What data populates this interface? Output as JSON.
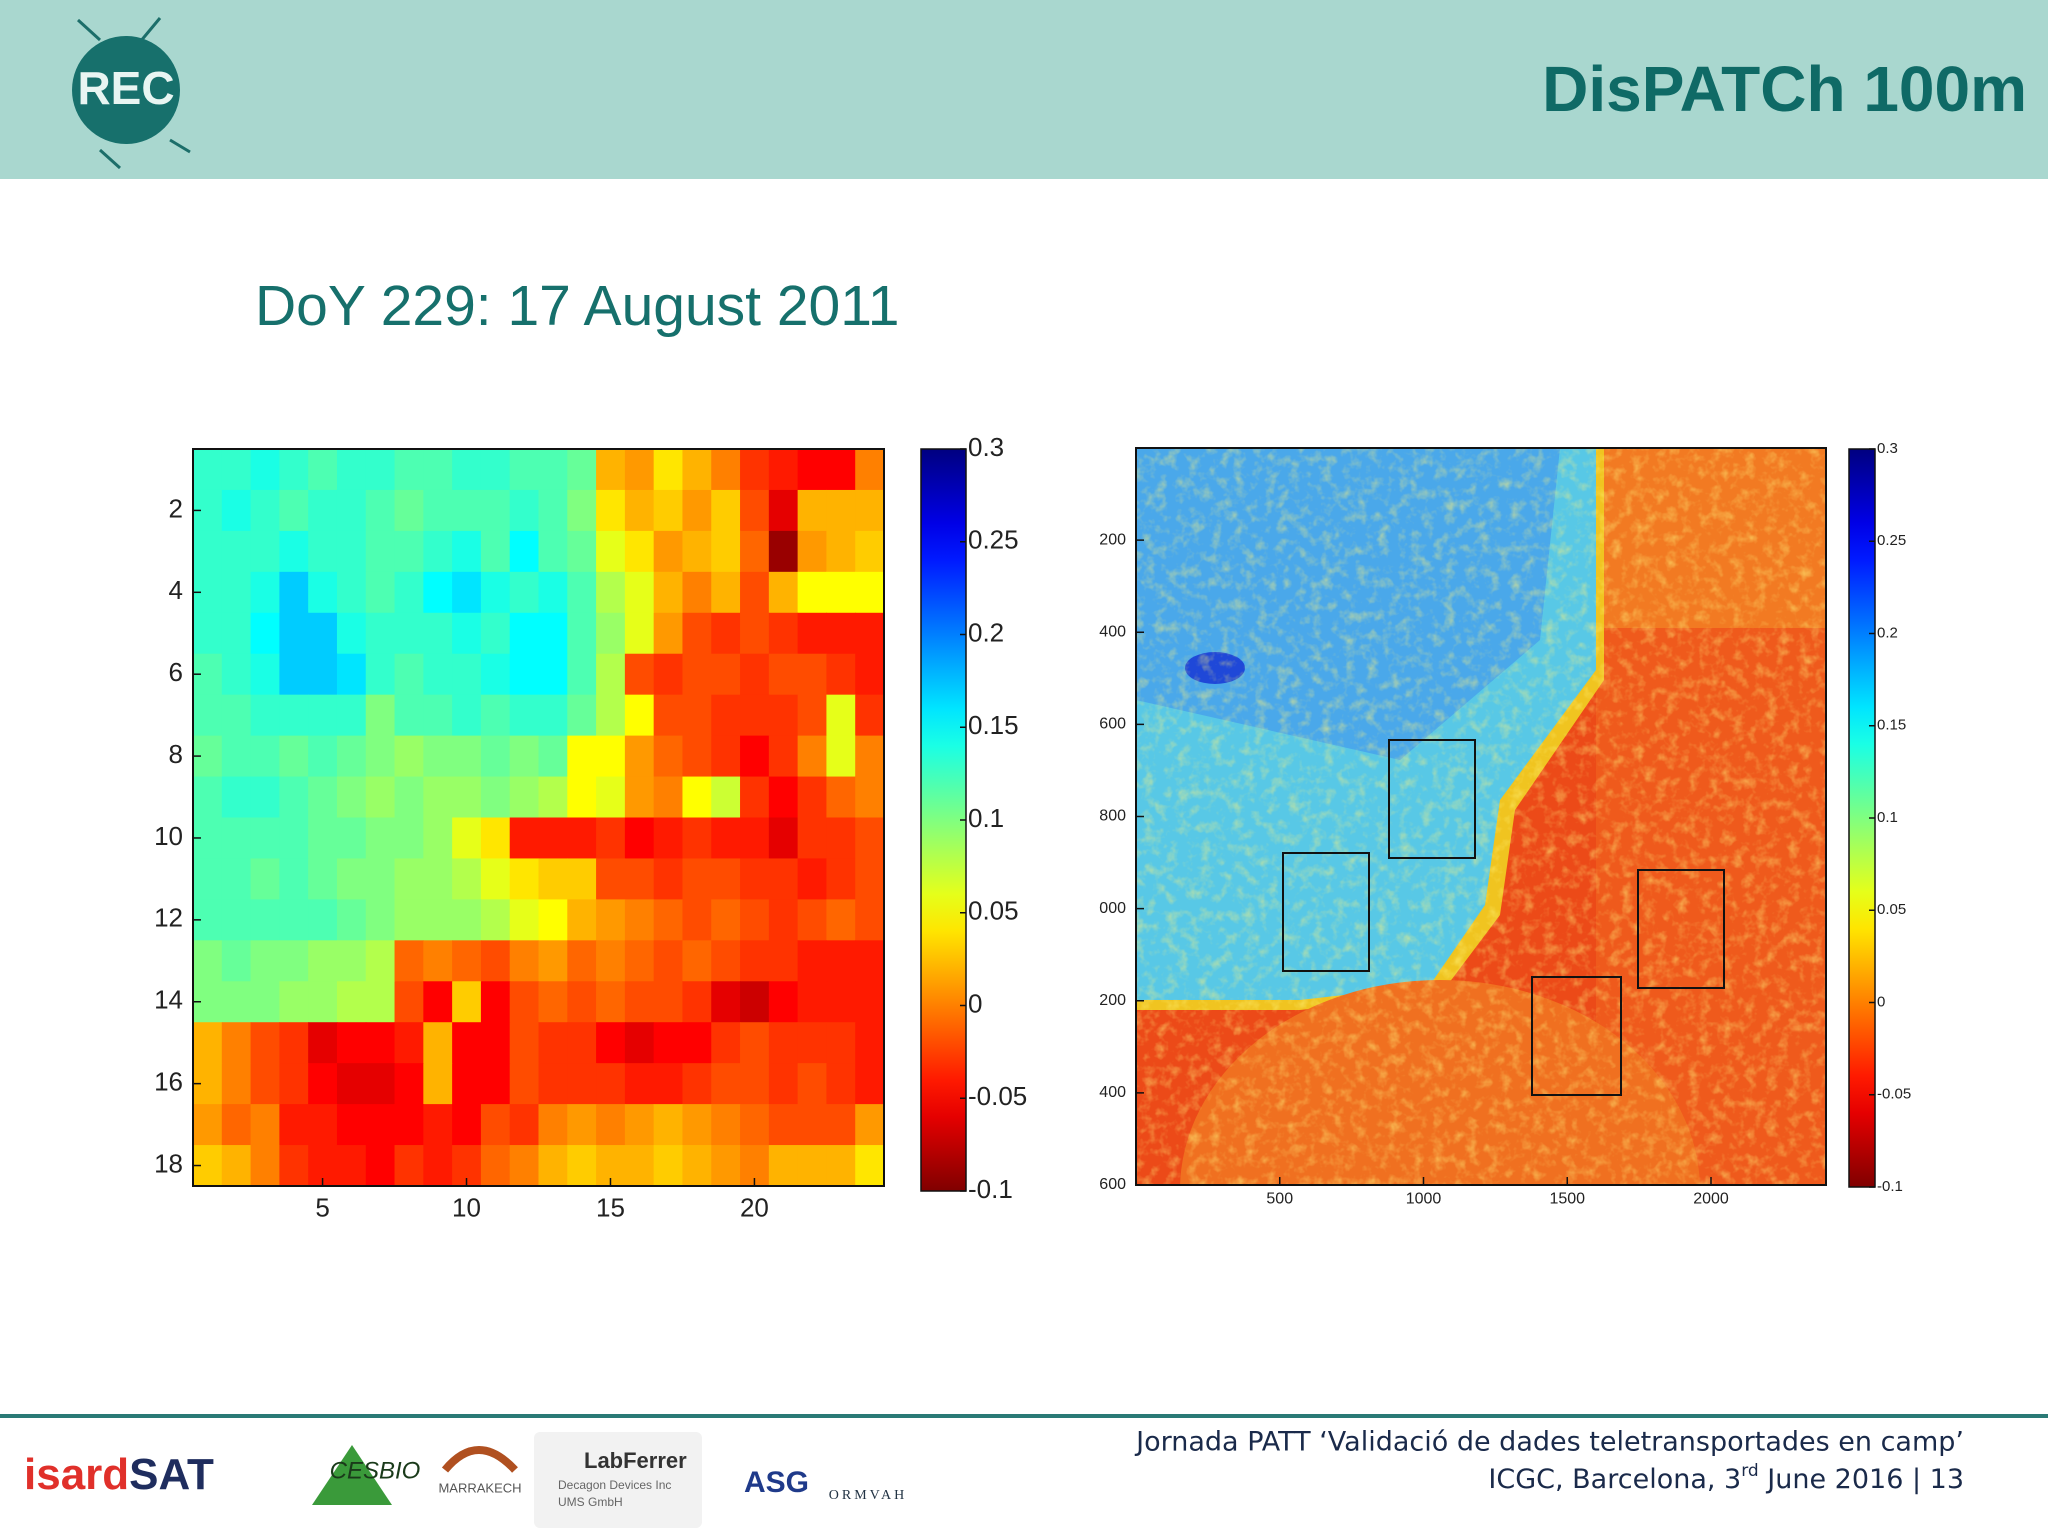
{
  "header": {
    "logo": "REC",
    "title": "DisPATCh 100m"
  },
  "subtitle": "DoY 229: 17 August 2011",
  "chart_data": [
    {
      "type": "heatmap",
      "xlim": [
        0.5,
        24.5
      ],
      "ylim": [
        0.5,
        18.5
      ],
      "y_reversed": true,
      "xticks": [
        5,
        10,
        15,
        20
      ],
      "yticks": [
        2,
        4,
        6,
        8,
        10,
        12,
        14,
        16,
        18
      ],
      "colormap": "jet_reversed",
      "clim": [
        -0.1,
        0.3
      ],
      "cticks": [
        0.3,
        0.25,
        0.2,
        0.15,
        0.1,
        0.05,
        0,
        -0.05,
        -0.1
      ],
      "values": [
        [
          0.13,
          0.13,
          0.14,
          0.13,
          0.12,
          0.13,
          0.13,
          0.12,
          0.12,
          0.13,
          0.13,
          0.12,
          0.12,
          0.11,
          0.02,
          0.01,
          0.04,
          0.02,
          0.0,
          -0.03,
          -0.04,
          -0.05,
          -0.05,
          0.0
        ],
        [
          0.13,
          0.14,
          0.13,
          0.12,
          0.13,
          0.13,
          0.12,
          0.11,
          0.12,
          0.12,
          0.12,
          0.13,
          0.12,
          0.1,
          0.04,
          0.02,
          0.03,
          0.01,
          0.03,
          -0.02,
          -0.06,
          0.02,
          0.02,
          0.02
        ],
        [
          0.13,
          0.13,
          0.13,
          0.14,
          0.13,
          0.13,
          0.12,
          0.12,
          0.13,
          0.14,
          0.12,
          0.15,
          0.12,
          0.11,
          0.06,
          0.04,
          0.01,
          0.02,
          0.03,
          -0.01,
          -0.09,
          0.01,
          0.02,
          0.03
        ],
        [
          0.13,
          0.13,
          0.14,
          0.17,
          0.14,
          0.13,
          0.12,
          0.13,
          0.15,
          0.16,
          0.14,
          0.13,
          0.14,
          0.12,
          0.08,
          0.06,
          0.02,
          0.0,
          0.02,
          -0.02,
          0.02,
          0.05,
          0.05,
          0.05
        ],
        [
          0.13,
          0.13,
          0.15,
          0.17,
          0.17,
          0.14,
          0.13,
          0.13,
          0.13,
          0.14,
          0.13,
          0.15,
          0.15,
          0.12,
          0.09,
          0.06,
          0.01,
          -0.02,
          -0.03,
          -0.02,
          -0.03,
          -0.04,
          -0.04,
          -0.04
        ],
        [
          0.12,
          0.13,
          0.14,
          0.17,
          0.17,
          0.16,
          0.13,
          0.12,
          0.13,
          0.13,
          0.14,
          0.15,
          0.15,
          0.12,
          0.08,
          -0.02,
          -0.03,
          -0.02,
          -0.02,
          -0.03,
          -0.02,
          -0.02,
          -0.03,
          -0.04
        ],
        [
          0.12,
          0.12,
          0.13,
          0.13,
          0.13,
          0.13,
          0.1,
          0.12,
          0.12,
          0.13,
          0.12,
          0.13,
          0.13,
          0.11,
          0.08,
          0.05,
          -0.02,
          -0.02,
          -0.03,
          -0.03,
          -0.03,
          -0.02,
          0.06,
          -0.03
        ],
        [
          0.11,
          0.12,
          0.12,
          0.11,
          0.12,
          0.11,
          0.1,
          0.09,
          0.1,
          0.1,
          0.11,
          0.1,
          0.11,
          0.05,
          0.05,
          0.01,
          -0.01,
          -0.02,
          -0.03,
          -0.05,
          -0.03,
          0.0,
          0.06,
          0.0
        ],
        [
          0.12,
          0.13,
          0.13,
          0.12,
          0.11,
          0.1,
          0.09,
          0.1,
          0.09,
          0.09,
          0.1,
          0.09,
          0.08,
          0.05,
          0.06,
          0.01,
          0.0,
          0.05,
          0.07,
          -0.03,
          -0.05,
          -0.03,
          -0.01,
          0.0
        ],
        [
          0.12,
          0.12,
          0.12,
          0.12,
          0.11,
          0.11,
          0.1,
          0.1,
          0.09,
          0.06,
          0.04,
          -0.04,
          -0.04,
          -0.04,
          -0.03,
          -0.05,
          -0.04,
          -0.03,
          -0.04,
          -0.04,
          -0.06,
          -0.03,
          -0.03,
          -0.02
        ],
        [
          0.12,
          0.12,
          0.11,
          0.12,
          0.11,
          0.1,
          0.1,
          0.09,
          0.09,
          0.08,
          0.06,
          0.04,
          0.03,
          0.03,
          -0.02,
          -0.02,
          -0.03,
          -0.02,
          -0.02,
          -0.03,
          -0.03,
          -0.04,
          -0.03,
          -0.02
        ],
        [
          0.12,
          0.12,
          0.12,
          0.12,
          0.12,
          0.11,
          0.1,
          0.09,
          0.09,
          0.09,
          0.08,
          0.06,
          0.05,
          0.02,
          0.01,
          0.0,
          -0.01,
          -0.02,
          -0.01,
          -0.02,
          -0.03,
          -0.02,
          -0.01,
          -0.02
        ],
        [
          0.1,
          0.11,
          0.1,
          0.1,
          0.09,
          0.09,
          0.08,
          -0.01,
          0.0,
          -0.01,
          -0.02,
          0.0,
          0.01,
          -0.01,
          0.0,
          -0.01,
          -0.02,
          -0.01,
          -0.02,
          -0.03,
          -0.03,
          -0.04,
          -0.04,
          -0.04
        ],
        [
          0.1,
          0.1,
          0.1,
          0.09,
          0.09,
          0.08,
          0.08,
          -0.02,
          -0.05,
          0.03,
          -0.05,
          -0.02,
          -0.01,
          -0.02,
          -0.01,
          -0.02,
          -0.02,
          -0.03,
          -0.06,
          -0.07,
          -0.05,
          -0.04,
          -0.04,
          -0.04
        ],
        [
          0.02,
          0.0,
          -0.02,
          -0.03,
          -0.06,
          -0.05,
          -0.05,
          -0.04,
          0.02,
          -0.05,
          -0.05,
          -0.02,
          -0.03,
          -0.03,
          -0.05,
          -0.06,
          -0.05,
          -0.05,
          -0.03,
          -0.02,
          -0.03,
          -0.03,
          -0.03,
          -0.04
        ],
        [
          0.02,
          0.0,
          -0.02,
          -0.03,
          -0.05,
          -0.06,
          -0.06,
          -0.05,
          0.02,
          -0.05,
          -0.05,
          -0.02,
          -0.03,
          -0.03,
          -0.03,
          -0.04,
          -0.04,
          -0.03,
          -0.02,
          -0.02,
          -0.03,
          -0.02,
          -0.03,
          -0.04
        ],
        [
          0.01,
          -0.01,
          0.0,
          -0.04,
          -0.04,
          -0.05,
          -0.05,
          -0.05,
          -0.04,
          -0.05,
          -0.02,
          -0.03,
          0.0,
          0.01,
          0.0,
          0.01,
          0.02,
          0.01,
          0.0,
          -0.01,
          -0.02,
          -0.02,
          -0.02,
          0.01
        ],
        [
          0.03,
          0.02,
          0.0,
          -0.03,
          -0.04,
          -0.04,
          -0.05,
          -0.03,
          -0.04,
          -0.03,
          -0.01,
          0.0,
          0.02,
          0.03,
          0.02,
          0.02,
          0.03,
          0.02,
          0.01,
          0.0,
          0.02,
          0.02,
          0.02,
          0.04
        ]
      ]
    },
    {
      "type": "image",
      "xlim": [
        0,
        2400
      ],
      "ylim": [
        0,
        1600
      ],
      "y_reversed": true,
      "xticks": [
        500,
        1000,
        1500,
        2000
      ],
      "yticks": [
        200,
        400,
        600,
        800,
        {
          "value": 1000,
          "label": "000"
        },
        {
          "value": 1200,
          "label": "200"
        },
        {
          "value": 1400,
          "label": "400"
        },
        {
          "value": 1600,
          "label": "600"
        }
      ],
      "colormap": "jet_reversed",
      "clim": [
        -0.1,
        0.3
      ],
      "cticks": [
        0.3,
        0.25,
        0.2,
        0.15,
        0.1,
        0.05,
        0,
        -0.05,
        -0.1
      ]
    }
  ],
  "footer": {
    "line1": "Jornada PATT ‘Validació de dades teletransportades en camp’",
    "line2a": "ICGC, Barcelona, 3",
    "line2sup": "rd",
    "line2b": " June 2016 | 13"
  },
  "logos": {
    "isard": "isard",
    "sat": "SAT",
    "cesbio": "CESBIO",
    "marrakech": "MARRAKECH",
    "labferrer": "LabFerrer",
    "decagon": "Decagon Devices Inc",
    "ums": "UMS GmbH",
    "asg": "ASG",
    "ormvah": "ORMVAH"
  }
}
